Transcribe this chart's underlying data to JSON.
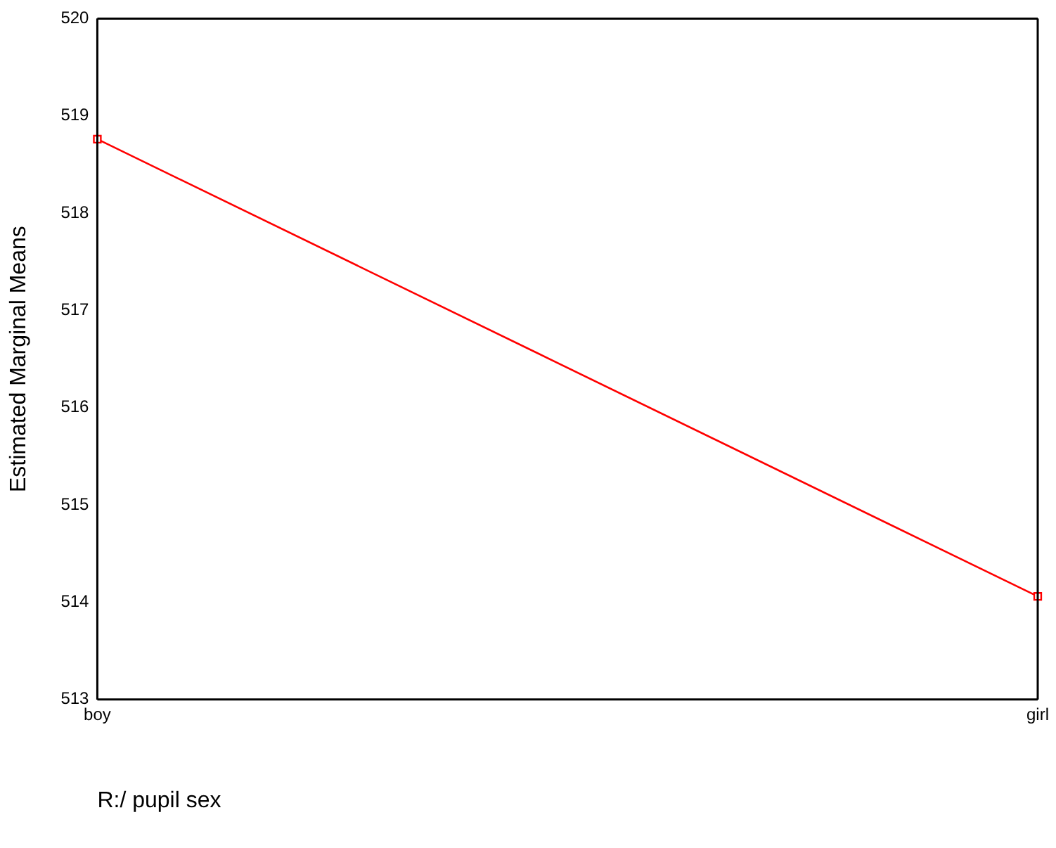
{
  "chart_data": {
    "type": "line",
    "xlabel": "R:/ pupil sex",
    "ylabel": "Estimated Marginal Means",
    "categories": [
      "boy",
      "girl"
    ],
    "series": [
      {
        "color": "#ff0000",
        "values": [
          518.76,
          514.06
        ]
      }
    ],
    "ylim": [
      513,
      520
    ],
    "yticks": [
      513,
      514,
      515,
      516,
      517,
      518,
      519,
      520
    ],
    "marker": "square",
    "line_style": "solid",
    "grid": "x",
    "legend": false
  }
}
